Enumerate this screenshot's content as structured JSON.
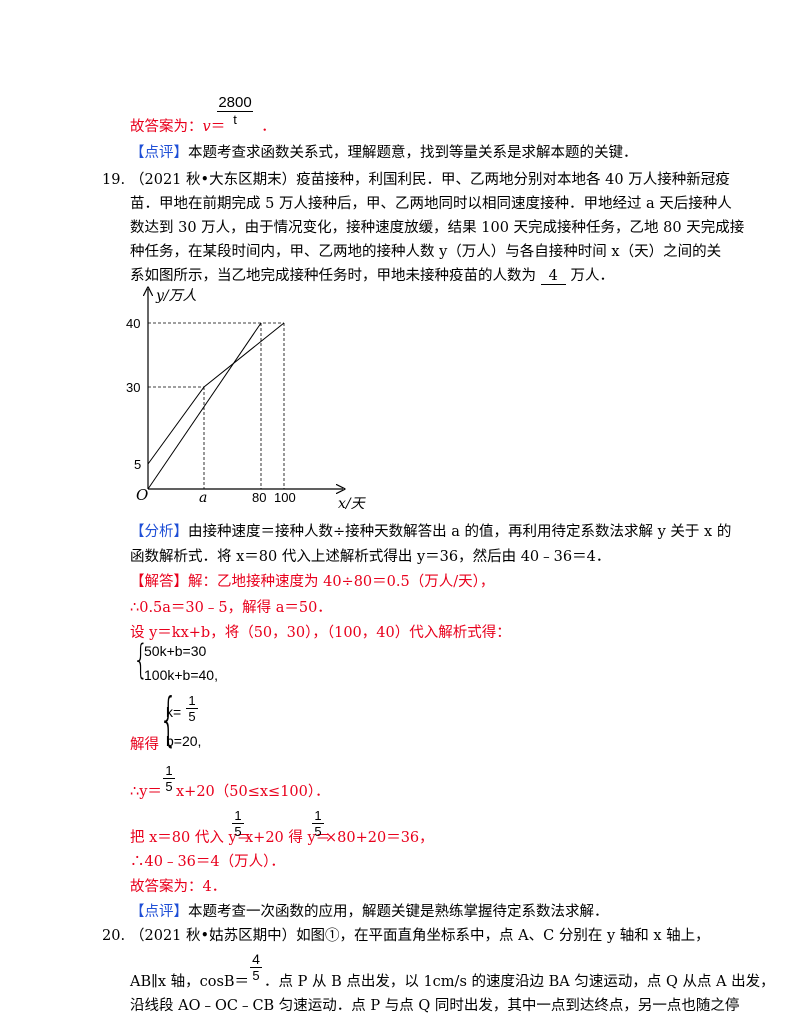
{
  "top": {
    "frac_num": "2800",
    "frac_den": "t",
    "answer_prefix": "故答案为：",
    "answer_var": "v",
    "answer_eq": "＝",
    "answer_end": "．",
    "dianping_tag": "【点评】",
    "dianping_text": "本题考查求函数关系式，理解题意，找到等量关系是求解本题的关键．"
  },
  "q19": {
    "number": "19.",
    "line1": "（2021 秋•大东区期末）疫苗接种，利国利民．甲、乙两地分别对本地各 40 万人接种新冠疫",
    "line2": "苗．甲地在前期完成 5 万人接种后，甲、乙两地同时以相同速度接种．甲地经过 a 天后接种人",
    "line3": "数达到 30 万人，由于情况变化，接种速度放缓，结果 100 天完成接种任务，乙地 80 天完成接",
    "line4": "种任务，在某段时间内，甲、乙两地的接种人数 y（万人）与各自接种时间 x（天）之间的关",
    "line5_pre": "系如图所示，当乙地完成接种任务时，甲地未接种疫苗的人数为",
    "line5_blank": "4",
    "line5_post": "万人．"
  },
  "graph": {
    "y_axis_label": "y/万人",
    "x_axis_label": "x/天",
    "origin": "O",
    "y_ticks": [
      "40",
      "30",
      "5"
    ],
    "x_ticks": [
      "a",
      "80",
      "100"
    ]
  },
  "fenxi": {
    "tag": "【分析】",
    "line1": "由接种速度＝接种人数÷接种天数解答出 a 的值，再利用待定系数法求解 y 关于 x 的",
    "line2": "函数解析式．将 x＝80 代入上述解析式得出 y＝36，然后由 40﹣36＝4．"
  },
  "jieda": {
    "tag": "【解答】",
    "line1": "解：乙地接种速度为 40÷80＝0.5（万人/天），",
    "line2": "∴0.5a＝30﹣5，解得 a＝50．",
    "line3": "设 y＝kx+b，将（50，30），（100，40）代入解析式得：",
    "sys1_a": "50k+b=30",
    "sys1_b": "100k+b=40,",
    "sys2_k": "k=",
    "sys2_k_num": "1",
    "sys2_k_den": "5",
    "sys2_b": "b=20,",
    "jiede": "解得",
    "l4_pre": "∴y＝",
    "l4_num": "1",
    "l4_den": "5",
    "l4_post": "x+20（50≤x≤100）．",
    "l5_pre": "把 x＝80 代入 y＝",
    "l5_num": "1",
    "l5_den": "5",
    "l5_mid": "x+20 得 y＝",
    "l5_num2": "1",
    "l5_den2": "5",
    "l5_post": "×80+20＝36，",
    "l6": "∴40﹣36＝4（万人）．",
    "l7": "故答案为：4．"
  },
  "dianping2": {
    "tag": "【点评】",
    "text": "本题考查一次函数的应用，解题关键是熟练掌握待定系数法求解．"
  },
  "q20": {
    "number": "20.",
    "line1": "（2021 秋•姑苏区期中）如图①，在平面直角坐标系中，点 A、C 分别在 y 轴和 x 轴上，",
    "frac_num": "4",
    "frac_den": "5",
    "line2_pre": "AB∥x 轴，cosB＝",
    "line2_post": "．点 P 从 B 点出发，以 1cm/s 的速度沿边 BA 匀速运动，点 Q 从点 A 出发，",
    "line3": "沿线段 AO﹣OC﹣CB 匀速运动．点 P 与点 Q 同时出发，其中一点到达终点，另一点也随之停"
  }
}
